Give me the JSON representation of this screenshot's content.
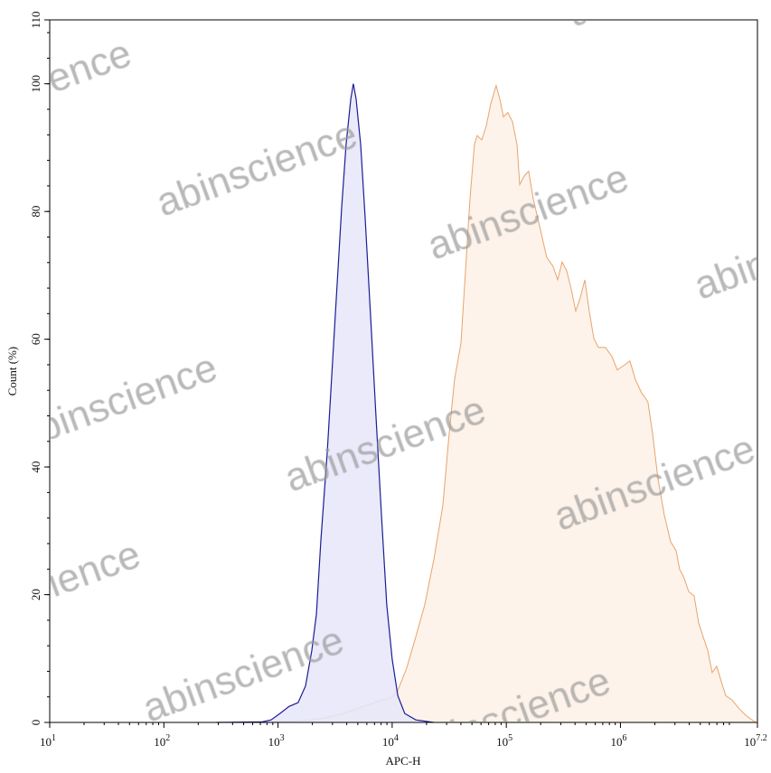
{
  "chart_data": {
    "type": "area",
    "title": "",
    "xlabel": "APC-H",
    "ylabel": "Count (%)",
    "xscale": "log",
    "xlim": [
      10,
      15848932
    ],
    "ylim": [
      0,
      110
    ],
    "x_ticks": [
      {
        "base": "10",
        "exp": "1",
        "value": 10
      },
      {
        "base": "10",
        "exp": "2",
        "value": 100
      },
      {
        "base": "10",
        "exp": "3",
        "value": 1000
      },
      {
        "base": "10",
        "exp": "4",
        "value": 10000
      },
      {
        "base": "10",
        "exp": "5",
        "value": 100000
      },
      {
        "base": "10",
        "exp": "6",
        "value": 1000000
      },
      {
        "base": "10",
        "exp": "7.2",
        "value": 15848932
      }
    ],
    "y_ticks": [
      "0",
      "20",
      "40",
      "60",
      "80",
      "100",
      "110"
    ],
    "grid": false,
    "legend": "none",
    "series": [
      {
        "color": "#1c1c96",
        "fill": "#e6e6fa",
        "x": [
          290.0,
          730.0,
          870.0,
          1040.0,
          1250.0,
          1500.0,
          1740.0,
          1980.0,
          2170.0,
          2370.0,
          2700.0,
          3010.0,
          3240.0,
          3610.0,
          3950.0,
          4340.0,
          4570.0,
          4830.0,
          5300.0,
          5790.0,
          6470.0,
          7210.0,
          8050.0,
          8970.0,
          10000.0,
          11200.0,
          12900.0,
          16100.0,
          23200.0
        ],
        "y": [
          0,
          0.1,
          0.4,
          1.4,
          2.5,
          3.1,
          5.7,
          11.3,
          17.0,
          28.3,
          42.4,
          56.6,
          66.5,
          80.6,
          90.5,
          97.6,
          100,
          97.6,
          90.5,
          79.2,
          63.6,
          48.1,
          32.5,
          18.4,
          9.9,
          4.2,
          1.4,
          0.4,
          0
        ]
      },
      {
        "color": "#e8a46c",
        "fill": "#fdf3ea",
        "x": [
          290.0,
          870.0,
          1800.0,
          2600.0,
          3700.0,
          5400.0,
          7800.0,
          9700.0,
          11200.0,
          13400.0,
          16100.0,
          19300.0,
          23200.0,
          27800.0,
          31600.0,
          35200.0,
          40100.0,
          43900.0,
          48100.0,
          52600.0,
          55600.0,
          60900.0,
          66700.0,
          73100.0,
          81500.0,
          87700.0,
          94400.0,
          103000.0,
          113000.0,
          124000.0,
          131000.0,
          144000.0,
          157000.0,
          172000.0,
          195000.0,
          226000.0,
          257000.0,
          282000.0,
          308000.0,
          338000.0,
          370000.0,
          406000.0,
          445000.0,
          487000.0,
          533000.0,
          584000.0,
          640000.0,
          740000.0,
          841000.0,
          938000.0,
          1070000.0,
          1210000.0,
          1350000.0,
          1530000.0,
          1740000.0,
          1910000.0,
          2130000.0,
          2420000.0,
          2750000.0,
          3070000.0,
          3300000.0,
          3610000.0,
          3960000.0,
          4420000.0,
          4840000.0,
          5300000.0,
          5810000.0,
          6360000.0,
          6970000.0,
          7640000.0,
          8360000.0,
          9500000.0,
          11000000.0,
          12700000.0,
          15300000.0
        ],
        "y": [
          0,
          0.1,
          0.3,
          0.7,
          1.4,
          2.4,
          3.4,
          3.8,
          5.0,
          8.5,
          13.4,
          18.4,
          25.5,
          33.9,
          45.3,
          53.7,
          59.4,
          70.7,
          82.0,
          90.5,
          91.9,
          91.2,
          93.4,
          96.9,
          99.7,
          97.6,
          94.8,
          95.5,
          94.1,
          90.5,
          84.2,
          85.6,
          86.3,
          82.0,
          77.8,
          72.8,
          71.4,
          69.3,
          72.1,
          70.7,
          67.9,
          64.4,
          66.5,
          69.3,
          64.4,
          60.1,
          58.7,
          58.7,
          57.3,
          55.2,
          55.9,
          56.6,
          53.7,
          51.6,
          50.2,
          45.3,
          38.2,
          32.5,
          28.3,
          26.9,
          24.0,
          22.6,
          20.5,
          19.8,
          15.6,
          13.4,
          11.3,
          7.8,
          8.8,
          6.4,
          4.2,
          3.5,
          2.1,
          1.0,
          0
        ]
      }
    ]
  },
  "watermark": {
    "text": "abinscience"
  }
}
